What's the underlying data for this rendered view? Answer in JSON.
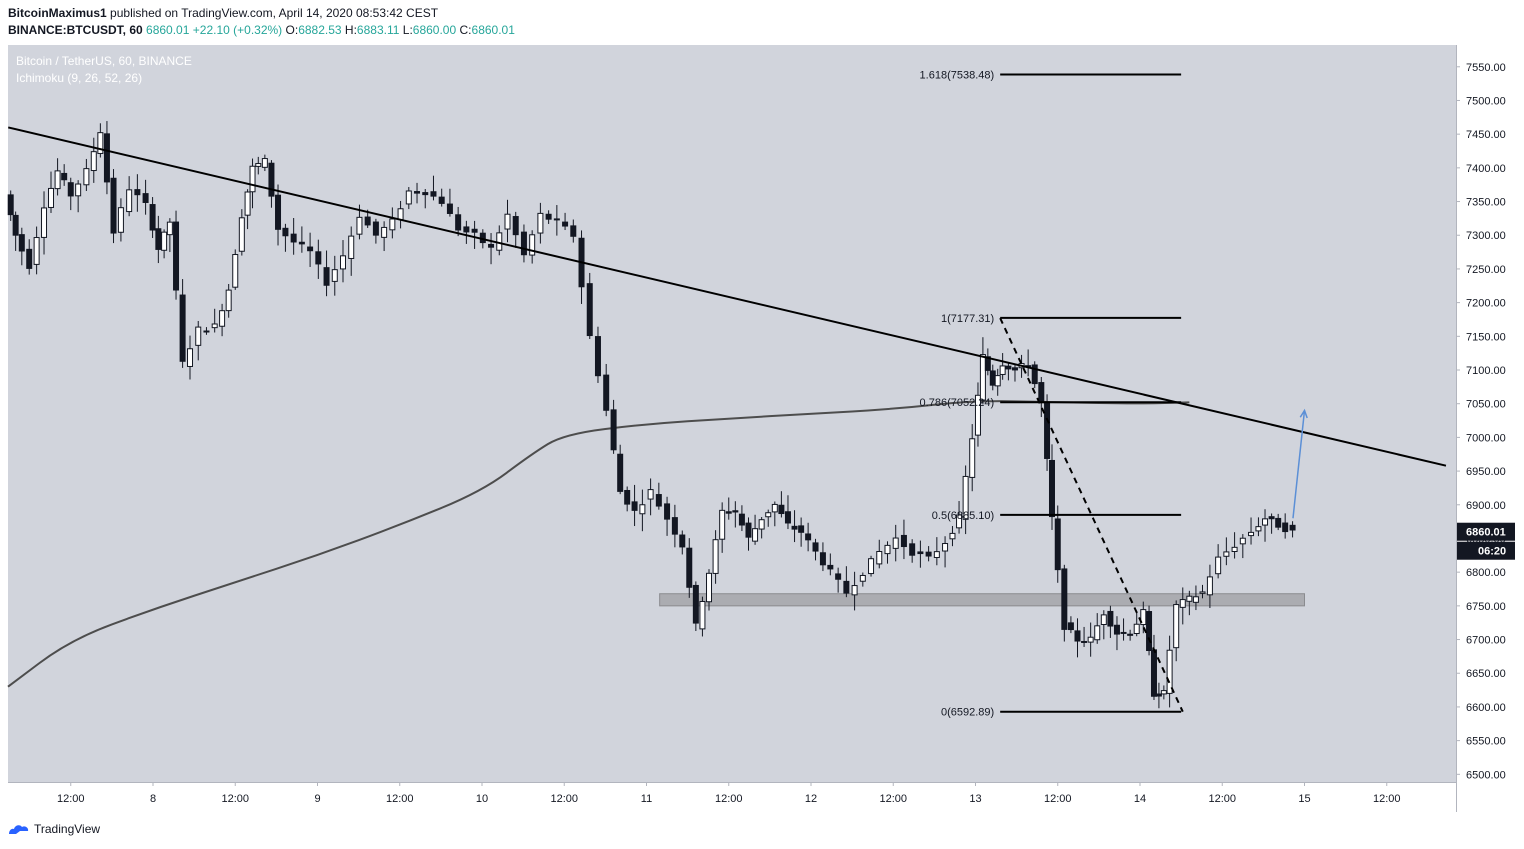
{
  "header": {
    "author": "BitcoinMaximus1",
    "published_text": "published on TradingView.com, April 14, 2020 08:53:42 CEST",
    "symbol": "BINANCE:BTCUSDT, 60",
    "last": "6860.01",
    "change": "+22.10 (+0.32%)",
    "o_label": "O:",
    "o_value": "6882.53",
    "h_label": "H:",
    "h_value": "6883.11",
    "l_label": "L:",
    "l_value": "6860.00",
    "c_label": "C:",
    "c_value": "6860.01"
  },
  "legend": {
    "pair": "Bitcoin / TetherUS, 60, BINANCE",
    "indicator": "Ichimoku (9, 26, 52, 26)"
  },
  "footer": {
    "brand": "TradingView"
  },
  "colors": {
    "background": "#d1d4dc",
    "candle_up": "#ffffff",
    "candle_down": "#131722",
    "trendline": "#000000",
    "ma_line": "#4d4d4d",
    "support_zone": "#9e9fa3",
    "projection_arrow": "#5b8fd6"
  },
  "chart_data": {
    "type": "candlestick",
    "y_axis": {
      "range": [
        6480,
        7575
      ],
      "ticks": [
        6500,
        6550,
        6600,
        6650,
        6700,
        6750,
        6800,
        6850,
        6900,
        6950,
        7000,
        7050,
        7100,
        7150,
        7200,
        7250,
        7300,
        7350,
        7400,
        7450,
        7500,
        7550
      ]
    },
    "x_axis": {
      "ticks": [
        {
          "label": "12:00",
          "day": 7.5
        },
        {
          "label": "8",
          "day": 8.0
        },
        {
          "label": "12:00",
          "day": 8.5
        },
        {
          "label": "9",
          "day": 9.0
        },
        {
          "label": "12:00",
          "day": 9.5
        },
        {
          "label": "10",
          "day": 10.0
        },
        {
          "label": "12:00",
          "day": 10.5
        },
        {
          "label": "11",
          "day": 11.0
        },
        {
          "label": "12:00",
          "day": 11.5
        },
        {
          "label": "12",
          "day": 12.0
        },
        {
          "label": "12:00",
          "day": 12.5
        },
        {
          "label": "13",
          "day": 13.0
        },
        {
          "label": "12:00",
          "day": 13.5
        },
        {
          "label": "14",
          "day": 14.0
        },
        {
          "label": "12:00",
          "day": 14.5
        },
        {
          "label": "15",
          "day": 15.0
        },
        {
          "label": "12:00",
          "day": 15.5
        }
      ]
    },
    "last_price": {
      "value": 6860.01,
      "label": "6860.01",
      "countdown": "06:20"
    },
    "price_path": [
      [
        7.12,
        7360
      ],
      [
        7.18,
        7300
      ],
      [
        7.27,
        7255
      ],
      [
        7.36,
        7345
      ],
      [
        7.44,
        7395
      ],
      [
        7.52,
        7360
      ],
      [
        7.62,
        7395
      ],
      [
        7.7,
        7455
      ],
      [
        7.78,
        7305
      ],
      [
        7.88,
        7370
      ],
      [
        7.98,
        7345
      ],
      [
        8.05,
        7280
      ],
      [
        8.12,
        7320
      ],
      [
        8.2,
        7110
      ],
      [
        8.3,
        7160
      ],
      [
        8.4,
        7165
      ],
      [
        8.48,
        7220
      ],
      [
        8.56,
        7330
      ],
      [
        8.62,
        7400
      ],
      [
        8.7,
        7410
      ],
      [
        8.78,
        7310
      ],
      [
        8.88,
        7290
      ],
      [
        8.98,
        7275
      ],
      [
        9.08,
        7230
      ],
      [
        9.18,
        7270
      ],
      [
        9.28,
        7330
      ],
      [
        9.38,
        7300
      ],
      [
        9.48,
        7320
      ],
      [
        9.58,
        7365
      ],
      [
        9.68,
        7365
      ],
      [
        9.78,
        7350
      ],
      [
        9.88,
        7310
      ],
      [
        9.98,
        7300
      ],
      [
        10.08,
        7280
      ],
      [
        10.18,
        7330
      ],
      [
        10.28,
        7270
      ],
      [
        10.38,
        7330
      ],
      [
        10.48,
        7320
      ],
      [
        10.58,
        7300
      ],
      [
        10.68,
        7150
      ],
      [
        10.78,
        7040
      ],
      [
        10.86,
        6920
      ],
      [
        10.95,
        6890
      ],
      [
        11.05,
        6920
      ],
      [
        11.15,
        6880
      ],
      [
        11.24,
        6840
      ],
      [
        11.32,
        6720
      ],
      [
        11.4,
        6800
      ],
      [
        11.48,
        6890
      ],
      [
        11.56,
        6890
      ],
      [
        11.64,
        6850
      ],
      [
        11.72,
        6880
      ],
      [
        11.8,
        6900
      ],
      [
        11.88,
        6870
      ],
      [
        11.96,
        6860
      ],
      [
        12.05,
        6830
      ],
      [
        12.14,
        6800
      ],
      [
        12.24,
        6770
      ],
      [
        12.34,
        6800
      ],
      [
        12.44,
        6830
      ],
      [
        12.54,
        6850
      ],
      [
        12.64,
        6830
      ],
      [
        12.74,
        6820
      ],
      [
        12.84,
        6845
      ],
      [
        12.92,
        6880
      ],
      [
        13.0,
        7000
      ],
      [
        13.06,
        7120
      ],
      [
        13.12,
        7080
      ],
      [
        13.18,
        7110
      ],
      [
        13.26,
        7100
      ],
      [
        13.34,
        7110
      ],
      [
        13.42,
        7050
      ],
      [
        13.48,
        6880
      ],
      [
        13.56,
        6720
      ],
      [
        13.64,
        6700
      ],
      [
        13.72,
        6700
      ],
      [
        13.8,
        6740
      ],
      [
        13.88,
        6710
      ],
      [
        13.96,
        6710
      ],
      [
        14.04,
        6740
      ],
      [
        14.1,
        6620
      ],
      [
        14.16,
        6620
      ],
      [
        14.24,
        6750
      ],
      [
        14.32,
        6760
      ],
      [
        14.4,
        6770
      ],
      [
        14.5,
        6820
      ],
      [
        14.6,
        6840
      ],
      [
        14.7,
        6860
      ],
      [
        14.78,
        6880
      ],
      [
        14.86,
        6870
      ],
      [
        14.95,
        6860
      ]
    ],
    "trendline": {
      "from": {
        "day": 7.12,
        "price": 7460
      },
      "to": {
        "day": 15.86,
        "price": 6958
      }
    },
    "moving_average": [
      [
        7.0,
        6630
      ],
      [
        7.5,
        6700
      ],
      [
        8.0,
        6745
      ],
      [
        8.5,
        6785
      ],
      [
        9.0,
        6825
      ],
      [
        9.5,
        6870
      ],
      [
        10.0,
        6920
      ],
      [
        10.3,
        6975
      ],
      [
        10.5,
        7005
      ],
      [
        11.0,
        7020
      ],
      [
        11.5,
        7028
      ],
      [
        12.0,
        7035
      ],
      [
        12.5,
        7042
      ],
      [
        13.0,
        7055
      ],
      [
        13.5,
        7052
      ],
      [
        14.0,
        7050
      ],
      [
        14.3,
        7052
      ]
    ],
    "support_zone": {
      "from_day": 11.08,
      "to_day": 15.0,
      "low": 6750,
      "high": 6768
    },
    "fibonacci": {
      "levels": [
        {
          "label": "1.618(7538.48)",
          "price": 7538.48
        },
        {
          "label": "1(7177.31)",
          "price": 7177.31
        },
        {
          "label": "0.786(7052.24)",
          "price": 7052.24
        },
        {
          "label": "0.5(6885.10)",
          "price": 6885.1
        },
        {
          "label": "0(6592.89)",
          "price": 6592.89
        }
      ],
      "line_from_day": 13.15,
      "line_to_day": 14.25,
      "swing": [
        [
          13.15,
          7177
        ],
        [
          14.26,
          6593
        ]
      ]
    },
    "projection_arrow": {
      "from": {
        "day": 14.93,
        "price": 6880
      },
      "to": {
        "day": 15.0,
        "price": 7040
      }
    }
  }
}
